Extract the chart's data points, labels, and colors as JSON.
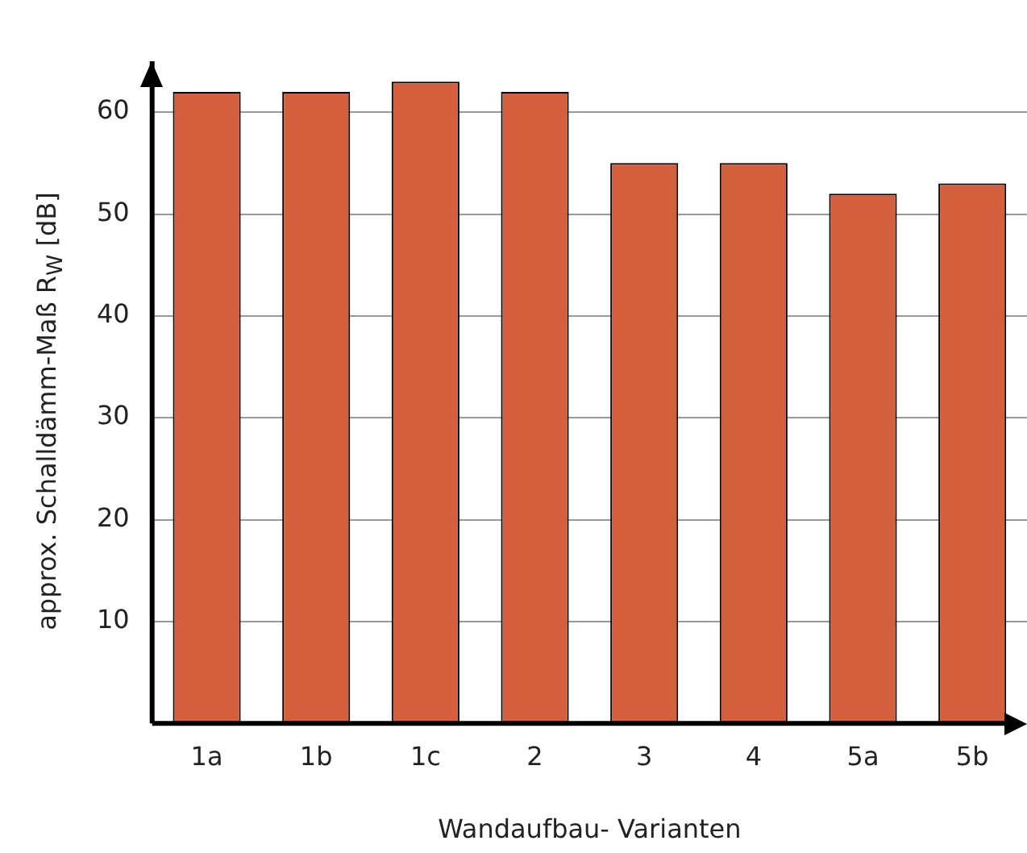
{
  "chart_data": {
    "type": "bar",
    "xlabel": "Wandaufbau- Varianten",
    "ylabel": "approx. Schalldämm-Maß R$_{W}$ [dB]",
    "categories": [
      "1a",
      "1b",
      "1c",
      "2",
      "3",
      "4",
      "5a",
      "5b"
    ],
    "values": [
      62,
      62,
      63,
      62,
      55,
      55,
      52,
      53
    ],
    "color": "#d45f3c",
    "ylim": [
      0,
      65
    ],
    "yticks": [
      10,
      20,
      30,
      40,
      50,
      60
    ],
    "grid": "y"
  }
}
